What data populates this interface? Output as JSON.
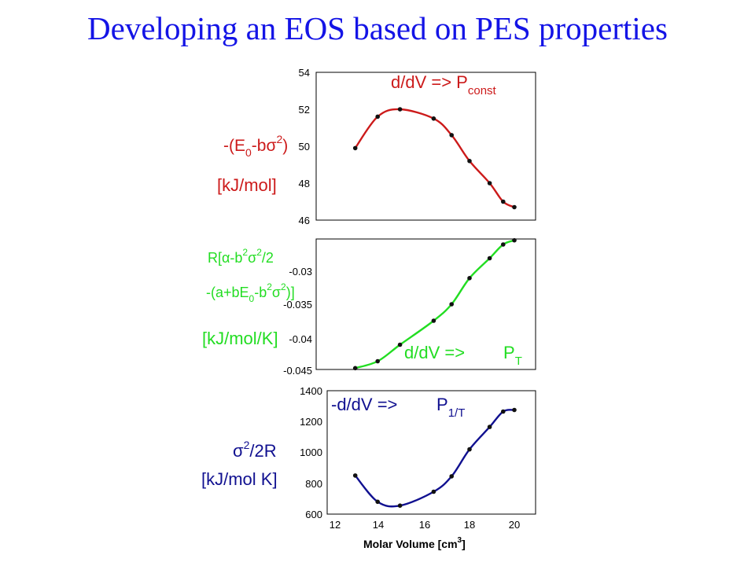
{
  "slide": {
    "title": "Developing an EOS based on PES properties"
  },
  "colors": {
    "title": "#1414e6",
    "panel1": "#cc1a1a",
    "panel2": "#22dd22",
    "panel3": "#101090",
    "points": "#111111"
  },
  "chart_data": [
    {
      "type": "line",
      "y_label_lines": [
        "-(E0-bσ2)",
        "[kJ/mol]"
      ],
      "annotation": "d/dV =>  Pconst",
      "x": [
        12.9,
        13.9,
        14.9,
        16.4,
        17.2,
        18.0,
        18.9,
        19.5,
        20.0
      ],
      "series": [
        {
          "values": [
            49.9,
            51.6,
            52.0,
            51.5,
            50.6,
            49.2,
            48.0,
            47.0,
            46.7
          ]
        }
      ],
      "xlim": [
        12,
        21
      ],
      "ylim": [
        46,
        54
      ],
      "yticks": [
        "46",
        "48",
        "50",
        "52",
        "54"
      ]
    },
    {
      "type": "line",
      "y_label_lines": [
        "R[α-b2σ2/2",
        "-(a+bE0-b2σ2)]",
        "[kJ/mol/K]"
      ],
      "annotation": "d/dV =>    PT",
      "x": [
        12.9,
        13.9,
        14.9,
        16.4,
        17.2,
        18.0,
        18.9,
        19.5,
        20.0
      ],
      "series": [
        {
          "values": [
            -0.0448,
            -0.0438,
            -0.0414,
            -0.0379,
            -0.0355,
            -0.0317,
            -0.0288,
            -0.0268,
            -0.0262
          ]
        }
      ],
      "xlim": [
        12,
        21
      ],
      "ylim": [
        -0.045,
        -0.026
      ],
      "yticks": [
        "-0.045",
        "-0.04",
        "-0.035",
        "-0.03"
      ]
    },
    {
      "type": "line",
      "y_label_lines": [
        "σ2/2R",
        "[kJ/mol K]"
      ],
      "annotation": "d/dV =>    P1/T",
      "x": [
        12.9,
        13.9,
        14.9,
        16.4,
        17.2,
        18.0,
        18.9,
        19.5,
        20.0
      ],
      "series": [
        {
          "values": [
            850,
            680,
            655,
            745,
            845,
            1020,
            1165,
            1265,
            1275
          ]
        }
      ],
      "xlim": [
        12,
        21
      ],
      "ylim": [
        600,
        1400
      ],
      "yticks": [
        "600",
        "800",
        "1000",
        "1200",
        "1400"
      ],
      "xticks": [
        "12",
        "14",
        "16",
        "18",
        "20"
      ],
      "xlabel": "Molar Volume [cm3]"
    }
  ]
}
